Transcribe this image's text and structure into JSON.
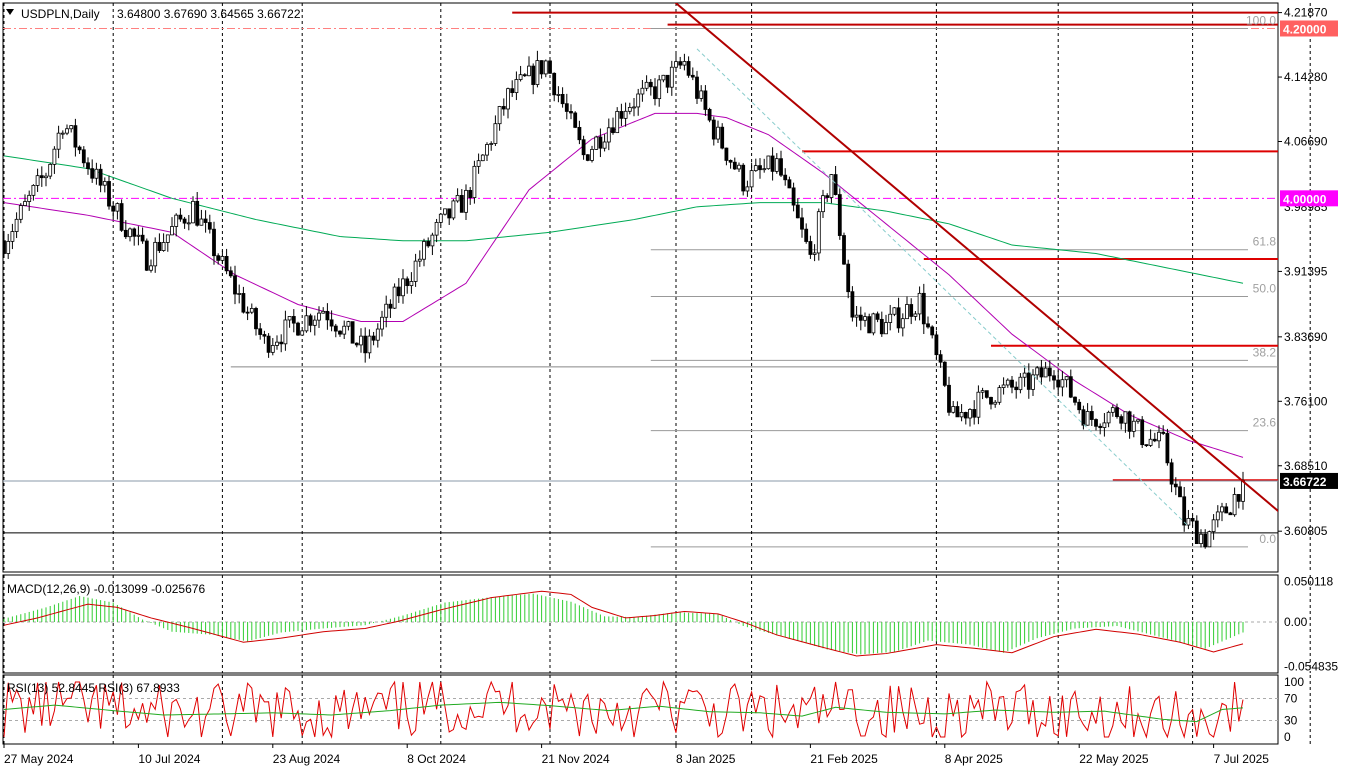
{
  "chart_data": {
    "type": "candlestick",
    "symbol": "USDPLN",
    "timeframe": "Daily",
    "title_text": "USDPLN,Daily",
    "ohlc_text": "3.64800 3.67690 3.64565 3.66722",
    "last_price": "3.66722",
    "colors": {
      "up_body": "#ffffff",
      "down_body": "#000000",
      "candle_line": "#000000",
      "ma_fast": "#b200b2",
      "ma_slow": "#00aa55",
      "trend": "#b00000",
      "hline": "#dd0000",
      "magenta_level": "#ff00ff",
      "macd_hist": "#32cd32",
      "macd_signal": "#d00000",
      "rsi_fast": "#e00000",
      "rsi_slow": "#22aa22",
      "fib": "#999999"
    },
    "price_axis": {
      "min": 3.56,
      "max": 4.23,
      "ticks": [
        "4.21870",
        "4.14280",
        "4.06690",
        "3.91395",
        "3.83690",
        "3.76100",
        "3.68510",
        "3.60805"
      ],
      "tick_values": [
        4.2187,
        4.1428,
        4.0669,
        3.91395,
        3.8369,
        3.761,
        3.6851,
        3.60805
      ],
      "partial_tick": "3.98985",
      "partial_tick_value": 3.98985
    },
    "price_tags": [
      {
        "label": "4.20000",
        "value": 4.2,
        "color": "#ff6060"
      },
      {
        "label": "4.00000",
        "value": 4.0,
        "color": "#ff00ff"
      },
      {
        "label": "3.66722",
        "value": 3.66722,
        "color": "#000000"
      }
    ],
    "date_labels": [
      "27 May 2024",
      "10 Jul 2024",
      "23 Aug 2024",
      "8 Oct 2024",
      "21 Nov 2024",
      "8 Jan 2025",
      "21 Feb 2025",
      "8 Apr 2025",
      "22 May 2025",
      "7 Jul 2025"
    ],
    "date_label_index": [
      0,
      32,
      64,
      96,
      128,
      160,
      192,
      224,
      256,
      288
    ],
    "grid_index": [
      0,
      26,
      52,
      71,
      104,
      130,
      160,
      178,
      222,
      251,
      283,
      311
    ],
    "fibonacci": {
      "levels": [
        {
          "label": "100.0",
          "price": 4.2
        },
        {
          "label": "61.8",
          "price": 3.9395
        },
        {
          "label": "50.0",
          "price": 3.8844
        },
        {
          "label": "38.2",
          "price": 3.8092
        },
        {
          "label": "23.6",
          "price": 3.7265
        },
        {
          "label": "0.0",
          "price": 3.5896
        }
      ]
    },
    "horizontal_lines": [
      {
        "price": 4.2187,
        "start_index": 121,
        "color": "#c00000"
      },
      {
        "price": 4.2045,
        "start_index": 158,
        "color": "#c00000"
      },
      {
        "price": 4.0553,
        "start_index": 190,
        "color": "#dd0000"
      },
      {
        "price": 3.9285,
        "start_index": 219,
        "color": "#dd0000"
      },
      {
        "price": 3.8264,
        "start_index": 235,
        "color": "#dd0000"
      },
      {
        "price": 3.6681,
        "start_index": 264,
        "color": "#dd0000"
      },
      {
        "price": 3.8016,
        "start_index": 54,
        "end_index": 311,
        "color": "#888888"
      },
      {
        "price": 3.6061,
        "start_index": 0,
        "end_index": 311,
        "color": "#000000"
      }
    ],
    "levels": [
      {
        "price": 4.0,
        "style": "dash-dot",
        "color": "#ff00ff"
      },
      {
        "price": 4.2,
        "style": "dash-dot",
        "color": "#ff8080"
      }
    ],
    "trendline": {
      "from": {
        "index": 159,
        "price": 4.234
      },
      "to": {
        "index": 305,
        "price": 3.625
      }
    },
    "channel_line": {
      "from": {
        "index": 165,
        "price": 4.176
      },
      "to": {
        "index": 282,
        "price": 3.614
      }
    },
    "candles_seed": {
      "count": 296,
      "anchors": [
        [
          0,
          3.95
        ],
        [
          10,
          4.03
        ],
        [
          14,
          4.09
        ],
        [
          26,
          3.99
        ],
        [
          34,
          3.93
        ],
        [
          45,
          3.99
        ],
        [
          52,
          3.92
        ],
        [
          62,
          3.83
        ],
        [
          76,
          3.87
        ],
        [
          86,
          3.82
        ],
        [
          94,
          3.89
        ],
        [
          104,
          3.97
        ],
        [
          110,
          4.0
        ],
        [
          120,
          4.12
        ],
        [
          129,
          4.16
        ],
        [
          138,
          4.05
        ],
        [
          148,
          4.11
        ],
        [
          156,
          4.13
        ],
        [
          162,
          4.16
        ],
        [
          168,
          4.09
        ],
        [
          176,
          4.02
        ],
        [
          184,
          4.04
        ],
        [
          192,
          3.93
        ],
        [
          197,
          4.03
        ],
        [
          202,
          3.86
        ],
        [
          210,
          3.85
        ],
        [
          218,
          3.88
        ],
        [
          226,
          3.74
        ],
        [
          235,
          3.77
        ],
        [
          243,
          3.78
        ],
        [
          250,
          3.8
        ],
        [
          258,
          3.74
        ],
        [
          266,
          3.75
        ],
        [
          271,
          3.72
        ],
        [
          276,
          3.71
        ],
        [
          281,
          3.62
        ],
        [
          286,
          3.6
        ],
        [
          292,
          3.64
        ],
        [
          295,
          3.667
        ]
      ]
    },
    "moving_averages": [
      {
        "color": "#b200b2",
        "points": [
          [
            0,
            3.995
          ],
          [
            20,
            3.98
          ],
          [
            40,
            3.96
          ],
          [
            55,
            3.91
          ],
          [
            70,
            3.875
          ],
          [
            85,
            3.855
          ],
          [
            95,
            3.855
          ],
          [
            110,
            3.9
          ],
          [
            125,
            4.01
          ],
          [
            140,
            4.07
          ],
          [
            155,
            4.1
          ],
          [
            165,
            4.1
          ],
          [
            172,
            4.095
          ],
          [
            182,
            4.075
          ],
          [
            195,
            4.03
          ],
          [
            210,
            3.97
          ],
          [
            225,
            3.91
          ],
          [
            240,
            3.84
          ],
          [
            255,
            3.785
          ],
          [
            268,
            3.745
          ],
          [
            282,
            3.715
          ],
          [
            295,
            3.695
          ]
        ]
      },
      {
        "color": "#00aa55",
        "points": [
          [
            0,
            4.05
          ],
          [
            20,
            4.035
          ],
          [
            40,
            4.0
          ],
          [
            60,
            3.975
          ],
          [
            80,
            3.955
          ],
          [
            95,
            3.95
          ],
          [
            110,
            3.95
          ],
          [
            130,
            3.96
          ],
          [
            150,
            3.975
          ],
          [
            165,
            3.99
          ],
          [
            180,
            3.995
          ],
          [
            195,
            3.995
          ],
          [
            210,
            3.985
          ],
          [
            225,
            3.97
          ],
          [
            240,
            3.945
          ],
          [
            260,
            3.935
          ],
          [
            280,
            3.915
          ],
          [
            295,
            3.9
          ]
        ]
      }
    ],
    "macd": {
      "label": "MACD(12,26,9) -0.013099 -0.025676",
      "ticks": [
        "0.050118",
        "0.00",
        "-0.054835"
      ],
      "tick_values": [
        0.050118,
        0.0,
        -0.054835
      ],
      "range": [
        -0.063,
        0.058
      ],
      "hist_anchors": [
        [
          0,
          0.004
        ],
        [
          10,
          0.018
        ],
        [
          18,
          0.032
        ],
        [
          26,
          0.024
        ],
        [
          33,
          0.003
        ],
        [
          40,
          -0.012
        ],
        [
          50,
          -0.016
        ],
        [
          58,
          -0.024
        ],
        [
          66,
          -0.013
        ],
        [
          76,
          -0.008
        ],
        [
          86,
          -0.004
        ],
        [
          95,
          0.008
        ],
        [
          105,
          0.024
        ],
        [
          115,
          0.03
        ],
        [
          126,
          0.035
        ],
        [
          135,
          0.025
        ],
        [
          143,
          0.007
        ],
        [
          150,
          0.006
        ],
        [
          160,
          0.012
        ],
        [
          170,
          0.01
        ],
        [
          176,
          -0.005
        ],
        [
          188,
          -0.022
        ],
        [
          196,
          -0.034
        ],
        [
          204,
          -0.04
        ],
        [
          212,
          -0.037
        ],
        [
          220,
          -0.023
        ],
        [
          230,
          -0.028
        ],
        [
          238,
          -0.038
        ],
        [
          246,
          -0.02
        ],
        [
          255,
          -0.008
        ],
        [
          265,
          -0.005
        ],
        [
          278,
          -0.022
        ],
        [
          286,
          -0.033
        ],
        [
          295,
          -0.013
        ]
      ],
      "signal_anchors": [
        [
          0,
          -0.004
        ],
        [
          8,
          0.005
        ],
        [
          15,
          0.015
        ],
        [
          20,
          0.022
        ],
        [
          27,
          0.018
        ],
        [
          35,
          0.005
        ],
        [
          45,
          -0.008
        ],
        [
          57,
          -0.025
        ],
        [
          66,
          -0.02
        ],
        [
          76,
          -0.012
        ],
        [
          86,
          -0.008
        ],
        [
          94,
          0.001
        ],
        [
          104,
          0.015
        ],
        [
          116,
          0.03
        ],
        [
          128,
          0.038
        ],
        [
          135,
          0.034
        ],
        [
          140,
          0.018
        ],
        [
          148,
          0.005
        ],
        [
          155,
          0.008
        ],
        [
          162,
          0.013
        ],
        [
          170,
          0.01
        ],
        [
          176,
          0.0
        ],
        [
          184,
          -0.016
        ],
        [
          194,
          -0.03
        ],
        [
          203,
          -0.042
        ],
        [
          210,
          -0.039
        ],
        [
          222,
          -0.028
        ],
        [
          232,
          -0.033
        ],
        [
          240,
          -0.038
        ],
        [
          250,
          -0.018
        ],
        [
          260,
          -0.009
        ],
        [
          270,
          -0.015
        ],
        [
          280,
          -0.025
        ],
        [
          288,
          -0.037
        ],
        [
          295,
          -0.027
        ]
      ]
    },
    "rsi": {
      "label": "RSI(13) 52.8445  RSI(3) 67.8933",
      "ticks": [
        "100",
        "70",
        "30",
        "0"
      ],
      "tick_values": [
        100,
        70,
        30,
        0
      ],
      "levels": [
        70,
        30
      ],
      "slow_anchors": [
        [
          0,
          50
        ],
        [
          12,
          58
        ],
        [
          26,
          48
        ],
        [
          38,
          40
        ],
        [
          52,
          42
        ],
        [
          64,
          44
        ],
        [
          78,
          40
        ],
        [
          92,
          48
        ],
        [
          104,
          58
        ],
        [
          118,
          63
        ],
        [
          130,
          57
        ],
        [
          144,
          48
        ],
        [
          156,
          56
        ],
        [
          168,
          46
        ],
        [
          180,
          44
        ],
        [
          190,
          38
        ],
        [
          198,
          54
        ],
        [
          210,
          45
        ],
        [
          224,
          42
        ],
        [
          236,
          49
        ],
        [
          250,
          45
        ],
        [
          262,
          47
        ],
        [
          276,
          32
        ],
        [
          284,
          28
        ],
        [
          290,
          50
        ],
        [
          295,
          53
        ]
      ],
      "fast_final": 68
    }
  }
}
